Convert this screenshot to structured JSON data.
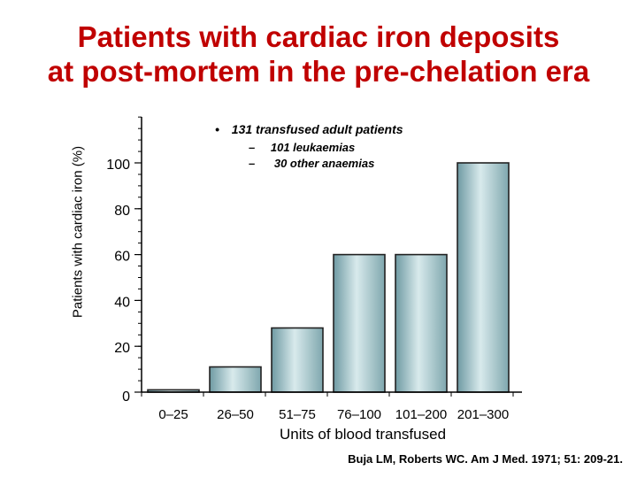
{
  "title_line1": "Patients with cardiac iron deposits",
  "title_line2": "at post-mortem in the pre-chelation era",
  "notes": {
    "bullet": "•",
    "main": "131 transfused adult patients",
    "dash": "–",
    "sub1": "101 leukaemias",
    "sub2": "30 other anaemias"
  },
  "citation": "Buja LM, Roberts WC. Am J Med. 1971; 51: 209-21.",
  "chart_data": {
    "type": "bar",
    "title": "Patients with cardiac iron deposits at post-mortem in the pre-chelation era",
    "xlabel": "Units of blood transfused",
    "ylabel": "Patients with cardiac iron (%)",
    "categories": [
      "0–25",
      "26–50",
      "51–75",
      "76–100",
      "101–200",
      "201–300"
    ],
    "values": [
      1,
      11,
      28,
      60,
      60,
      100
    ],
    "ylim": [
      0,
      100
    ],
    "yticks": [
      "0",
      "20",
      "40",
      "60",
      "80",
      "100"
    ],
    "bar_color": "#8fb4bb",
    "bar_highlight": "#d8eaec",
    "grid": false
  }
}
